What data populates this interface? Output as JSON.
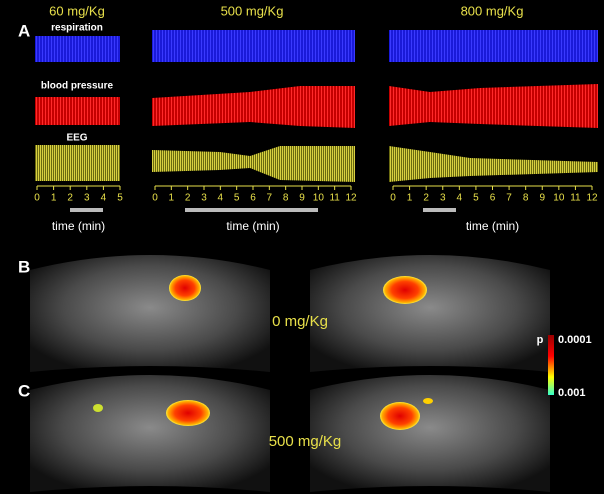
{
  "panels": {
    "A": {
      "label": "A",
      "doses": [
        "60 mg/Kg",
        "500 mg/Kg",
        "800 mg/Kg"
      ],
      "signals": [
        "respiration",
        "blood pressure",
        "EEG"
      ],
      "axes": [
        {
          "ticks": [
            0,
            1,
            2,
            3,
            4,
            5
          ],
          "label": "time (min)"
        },
        {
          "ticks": [
            0,
            1,
            2,
            3,
            4,
            5,
            6,
            7,
            8,
            9,
            10,
            11,
            12
          ],
          "label": "time (min)"
        },
        {
          "ticks": [
            0,
            1,
            2,
            3,
            4,
            5,
            6,
            7,
            8,
            9,
            10,
            11,
            12
          ],
          "label": "time (min)"
        }
      ]
    },
    "B": {
      "label": "B",
      "dose": "0 mg/Kg"
    },
    "C": {
      "label": "C",
      "dose": "500 mg/Kg"
    }
  },
  "colorbar": {
    "title": "p",
    "top": "0.0001",
    "bottom": "0.001"
  }
}
